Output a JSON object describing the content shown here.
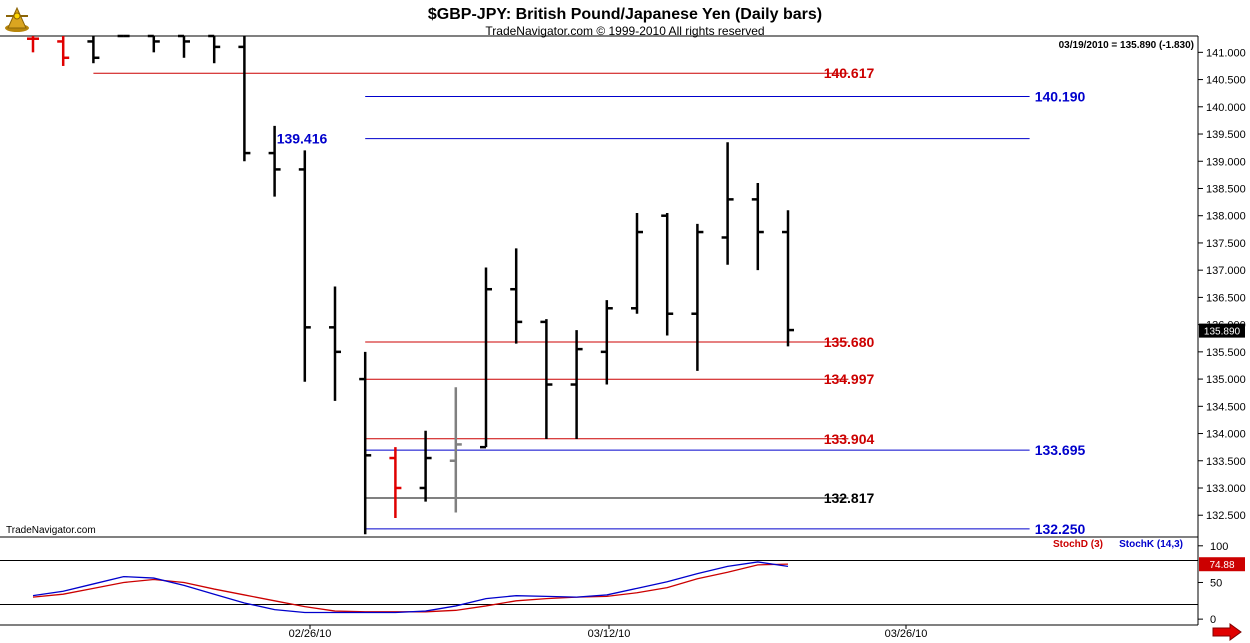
{
  "header": {
    "title": "$GBP-JPY:  British Pound/Japanese Yen  (Daily bars)",
    "subtitle": "TradeNavigator.com © 1999-2010 All rights reserved",
    "quote": "03/19/2010 = 135.890 (-1.830)",
    "watermark": "TradeNavigator.com",
    "logo_icon": "compass-logo-icon",
    "nav_icon": "right-arrow-icon"
  },
  "colors": {
    "up_bar": "#000000",
    "highlight_bar": "#e00000",
    "gray_bar": "#808080",
    "red_level": "#cc0000",
    "blue_level": "#0000cc",
    "black_level": "#000000",
    "stoch_d": "#cc0000",
    "stoch_k": "#0000cc"
  },
  "chart_data": [
    {
      "type": "ohlc",
      "title": "$GBP-JPY:  British Pound/Japanese Yen  (Daily bars)",
      "ylim": [
        132.1,
        141.3
      ],
      "y_ticks": [
        "141.000",
        "140.500",
        "140.000",
        "139.500",
        "139.000",
        "138.500",
        "138.000",
        "137.500",
        "137.000",
        "136.500",
        "136.000",
        "135.500",
        "135.000",
        "134.500",
        "134.000",
        "133.500",
        "133.000",
        "132.500"
      ],
      "x_ticks": [
        "02/26/10",
        "03/12/10",
        "03/26/10"
      ],
      "last_price": "135.890",
      "bars": [
        {
          "o": 141.25,
          "h": 141.3,
          "l": 141.0,
          "c": 141.25,
          "color": "red"
        },
        {
          "o": 141.2,
          "h": 141.3,
          "l": 140.75,
          "c": 140.9,
          "color": "red"
        },
        {
          "o": 141.2,
          "h": 141.3,
          "l": 140.8,
          "c": 140.9,
          "color": "black"
        },
        {
          "o": 141.3,
          "h": 141.3,
          "l": 141.3,
          "c": 141.3,
          "color": "black"
        },
        {
          "o": 141.3,
          "h": 141.3,
          "l": 141.0,
          "c": 141.2,
          "color": "black"
        },
        {
          "o": 141.3,
          "h": 141.3,
          "l": 140.9,
          "c": 141.2,
          "color": "black"
        },
        {
          "o": 141.3,
          "h": 141.3,
          "l": 140.8,
          "c": 141.1,
          "color": "black"
        },
        {
          "o": 141.1,
          "h": 141.3,
          "l": 139.0,
          "c": 139.15,
          "color": "black"
        },
        {
          "o": 139.15,
          "h": 139.65,
          "l": 138.35,
          "c": 138.85,
          "color": "black"
        },
        {
          "o": 138.85,
          "h": 139.2,
          "l": 134.95,
          "c": 135.95,
          "color": "black"
        },
        {
          "o": 135.95,
          "h": 136.7,
          "l": 134.6,
          "c": 135.5,
          "color": "black"
        },
        {
          "o": 135.0,
          "h": 135.5,
          "l": 132.15,
          "c": 133.6,
          "color": "black"
        },
        {
          "o": 133.55,
          "h": 133.75,
          "l": 132.45,
          "c": 133.0,
          "color": "red"
        },
        {
          "o": 133.0,
          "h": 134.05,
          "l": 132.75,
          "c": 133.55,
          "color": "black"
        },
        {
          "o": 133.5,
          "h": 134.85,
          "l": 132.55,
          "c": 133.8,
          "color": "gray"
        },
        {
          "o": 133.75,
          "h": 137.05,
          "l": 133.75,
          "c": 136.65,
          "color": "black"
        },
        {
          "o": 136.65,
          "h": 137.4,
          "l": 135.65,
          "c": 136.05,
          "color": "black"
        },
        {
          "o": 136.05,
          "h": 136.1,
          "l": 133.9,
          "c": 134.9,
          "color": "black"
        },
        {
          "o": 134.9,
          "h": 135.9,
          "l": 133.9,
          "c": 135.55,
          "color": "black"
        },
        {
          "o": 135.5,
          "h": 136.45,
          "l": 134.9,
          "c": 136.3,
          "color": "black"
        },
        {
          "o": 136.3,
          "h": 138.05,
          "l": 136.2,
          "c": 137.7,
          "color": "black"
        },
        {
          "o": 138.0,
          "h": 138.05,
          "l": 135.8,
          "c": 136.2,
          "color": "black"
        },
        {
          "o": 136.2,
          "h": 137.85,
          "l": 135.15,
          "c": 137.7,
          "color": "black"
        },
        {
          "o": 137.6,
          "h": 139.35,
          "l": 137.1,
          "c": 138.3,
          "color": "black"
        },
        {
          "o": 138.3,
          "h": 138.6,
          "l": 137.0,
          "c": 137.7,
          "color": "black"
        },
        {
          "o": 137.7,
          "h": 138.1,
          "l": 135.6,
          "c": 135.9,
          "color": "black"
        }
      ],
      "levels": [
        {
          "value": 140.617,
          "label": "140.617",
          "color": "red",
          "from_bar": 2,
          "to_bar": 27
        },
        {
          "value": 140.19,
          "label": "140.190",
          "color": "blue",
          "from_bar": 11,
          "to_bar": 33
        },
        {
          "value": 139.416,
          "label": "139.416",
          "color": "blue",
          "from_bar": 11,
          "to_bar": 33
        },
        {
          "value": 135.68,
          "label": "135.680",
          "color": "red",
          "from_bar": 11,
          "to_bar": 27
        },
        {
          "value": 134.997,
          "label": "134.997",
          "color": "red",
          "from_bar": 11,
          "to_bar": 27
        },
        {
          "value": 133.904,
          "label": "133.904",
          "color": "red",
          "from_bar": 11,
          "to_bar": 27
        },
        {
          "value": 133.695,
          "label": "133.695",
          "color": "blue",
          "from_bar": 11,
          "to_bar": 33
        },
        {
          "value": 132.817,
          "label": "132.817",
          "color": "black",
          "from_bar": 11,
          "to_bar": 27
        },
        {
          "value": 132.25,
          "label": "132.250",
          "color": "blue",
          "from_bar": 11,
          "to_bar": 33
        }
      ]
    },
    {
      "type": "line",
      "title": "",
      "ylim": [
        -8,
        112
      ],
      "y_ticks": [
        "100",
        "50",
        "0"
      ],
      "ref_lines": [
        80,
        20
      ],
      "legend": [
        "StochD (3)",
        "StochK (14,3)"
      ],
      "last_value": "74.88",
      "series": [
        {
          "name": "StochD (3)",
          "color": "red",
          "values": [
            30,
            34,
            42,
            50,
            54,
            50,
            41,
            33,
            25,
            17,
            11,
            10,
            10,
            10,
            12,
            18,
            25,
            28,
            30,
            31,
            36,
            43,
            55,
            64,
            74,
            75
          ]
        },
        {
          "name": "StochK (14,3)",
          "color": "blue",
          "values": [
            32,
            38,
            48,
            58,
            56,
            46,
            34,
            22,
            13,
            9,
            9,
            9,
            9,
            11,
            18,
            28,
            32,
            31,
            30,
            33,
            42,
            51,
            62,
            72,
            78,
            72
          ]
        }
      ]
    }
  ]
}
